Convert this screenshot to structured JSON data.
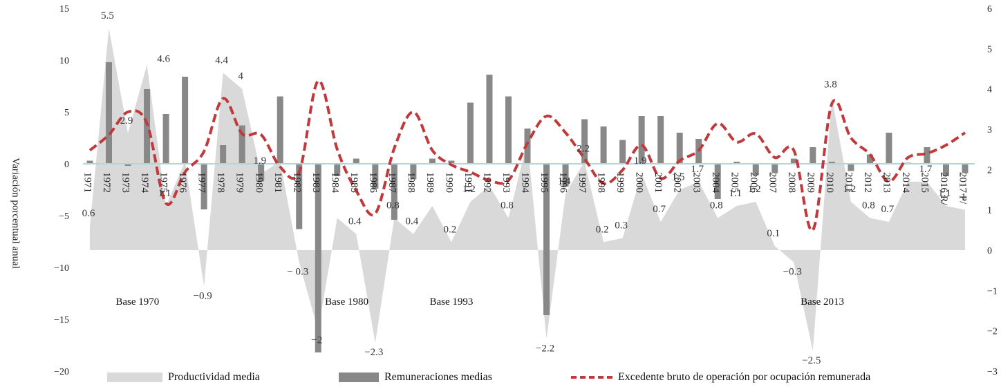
{
  "chart_data": {
    "type": "bar",
    "ylabel": "Variación porcentual anual",
    "ylim": [
      -20,
      15
    ],
    "y2lim": [
      -3,
      6
    ],
    "left_ticks": [
      "15",
      "10",
      "5",
      "0",
      "−5",
      "−10",
      "−15",
      "−20"
    ],
    "right_ticks": [
      "6",
      "5",
      "4",
      "3",
      "2",
      "1",
      "0",
      "−1",
      "−2",
      "−3"
    ],
    "categories": [
      "1971",
      "1972",
      "1973",
      "1974",
      "1975",
      "1976",
      "1977",
      "1978",
      "1979",
      "1980",
      "1981",
      "1982",
      "1983",
      "1984",
      "1985",
      "1986",
      "1987",
      "1988",
      "1989",
      "1990",
      "1991",
      "1992",
      "1993",
      "1994",
      "1995",
      "1996",
      "1997",
      "1998",
      "1999",
      "2000",
      "2001",
      "2002",
      "2003",
      "2004",
      "2005",
      "2006",
      "2007",
      "2008",
      "2009",
      "2010",
      "2011",
      "2012",
      "2013",
      "2014",
      "2015",
      "2016 R/",
      "2017 P/"
    ],
    "base_labels": [
      "Base 1970",
      "Base 1980",
      "Base 1993",
      "Base 2013"
    ],
    "series": [
      {
        "name": "Productividad media",
        "type": "area",
        "axis": "right",
        "color": "#d9d9d9",
        "values": [
          0.6,
          5.5,
          2.9,
          4.6,
          1.1,
          2.2,
          -0.9,
          4.4,
          4,
          1.9,
          2.2,
          -0.3,
          -2,
          0.8,
          0.4,
          -2.3,
          0.8,
          0.4,
          1.1,
          0.2,
          1.2,
          1.6,
          0.8,
          2.7,
          -2.2,
          1.4,
          2.2,
          0.2,
          0.3,
          1.9,
          0.7,
          1.5,
          1.7,
          0.8,
          1.1,
          1.2,
          0.1,
          -0.3,
          -2.5,
          3.8,
          1.2,
          0.8,
          0.7,
          1.7,
          1.7,
          1.1,
          1
        ],
        "labels": [
          "0.6",
          "5.5",
          "2.9",
          "",
          "1.1",
          "",
          "−0.9",
          "4.4",
          "4",
          "1.9",
          "",
          "− 0.3",
          "−2",
          "",
          "0.4",
          "−2.3",
          "0.8",
          "0.4",
          "",
          "0.2",
          "1.2",
          "",
          "0.8",
          "",
          "−2.2",
          "1.4",
          "2.2",
          "0.2",
          "0.3",
          "1.9",
          "0.7",
          "1.5",
          "1.7",
          "0.8",
          "1.1",
          "1.2",
          "0.1",
          "−0.3",
          "−2.5",
          "3.8",
          "1.2",
          "0.8",
          "0.7",
          "",
          "1.7",
          "1.1",
          "1"
        ],
        "label_values": [
          0.6,
          5.5,
          2.9,
          4.6,
          1.1,
          2.2,
          -0.9,
          4.4,
          4,
          1.9,
          2.2,
          -0.3,
          -2,
          0.8,
          0.4,
          -2.3,
          0.8,
          0.4,
          1.1,
          0.2,
          1.2,
          1.6,
          0.8,
          2.7,
          -2.2,
          1.4,
          2.2,
          0.2,
          0.3,
          1.9,
          0.7,
          1.5,
          1.7,
          0.8,
          1.1,
          1.2,
          0.1,
          -0.3,
          -2.5,
          3.8,
          1.2,
          0.8,
          0.7,
          1.7,
          1.7,
          1.1,
          1
        ],
        "extra_labels": [
          {
            "text": "4.6",
            "x": "1974",
            "value": 4.6
          }
        ]
      },
      {
        "name": "Remuneraciones medias",
        "type": "bar",
        "axis": "left",
        "color": "#888888",
        "values": [
          0.3,
          9.8,
          -0.2,
          7.2,
          4.8,
          8.4,
          -4.4,
          1.8,
          3.7,
          -1.7,
          6.5,
          -6.3,
          -18.2,
          -1.2,
          0.5,
          -2.4,
          -5.4,
          -1.5,
          0.5,
          0.3,
          5.9,
          8.6,
          6.5,
          3.4,
          -14.6,
          -2.2,
          4.3,
          3.6,
          2.3,
          4.6,
          4.6,
          3.0,
          2.4,
          -3.4,
          0.2,
          -1.1,
          -0.9,
          0.5,
          1.6,
          0.2,
          -0.7,
          0.9,
          3.0,
          0.1,
          1.6,
          -1.2,
          -0.9
        ]
      },
      {
        "name": "Excedente bruto de operación por ocupación remunerada",
        "type": "line",
        "axis": "left",
        "color": "#c0393b",
        "values": [
          1.3,
          2.8,
          5.0,
          3.9,
          -3.8,
          -0.8,
          1.2,
          6.3,
          2.9,
          2.8,
          -0.3,
          -0.8,
          8.0,
          1.4,
          -2.6,
          -4.8,
          1.5,
          5.0,
          1.3,
          -0.1,
          -0.8,
          -1.6,
          -1.6,
          2.0,
          4.6,
          3.0,
          0.5,
          -1.9,
          -0.6,
          1.8,
          -1.4,
          0.3,
          1.3,
          3.9,
          2.1,
          2.9,
          0.6,
          1.3,
          -6.4,
          5.8,
          2.5,
          0.9,
          -1.7,
          0.6,
          1.0,
          1.8,
          3.0
        ]
      }
    ]
  }
}
